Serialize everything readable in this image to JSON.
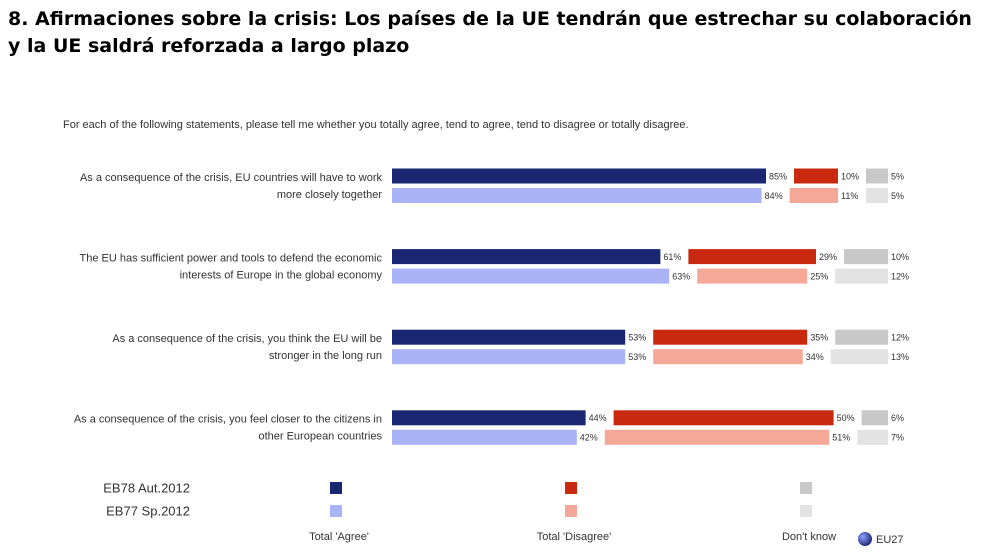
{
  "chart_data": {
    "type": "bar",
    "stacked": true,
    "orientation": "horizontal",
    "title": "8. Afirmaciones sobre la crisis: Los países de la UE tendrán que estrechar su colaboración y la UE saldrá reforzada a largo plazo",
    "subtitle": "For each of the following statements, please tell me whether you totally agree, tend to agree, tend to disagree or totally disagree.",
    "categories": [
      [
        "As a consequence of the crisis, EU countries will have to work",
        "more closely together"
      ],
      [
        "The EU has sufficient power and tools to defend the economic",
        "interests of Europe in the global economy"
      ],
      [
        "As a consequence of the crisis, you think the EU will be",
        "stronger in the long run"
      ],
      [
        "As a consequence of the crisis, you feel closer to the citizens in",
        "other European countries"
      ]
    ],
    "responses": [
      "Total 'Agree'",
      "Total 'Disagree'",
      "Don't know"
    ],
    "series": [
      {
        "name": "EB78 Aut.2012",
        "colors": [
          "#1a2672",
          "#c8290f",
          "#c8c8c8"
        ],
        "values": [
          [
            85,
            10,
            5
          ],
          [
            61,
            29,
            10
          ],
          [
            53,
            35,
            12
          ],
          [
            44,
            50,
            6
          ]
        ],
        "value_labels": [
          [
            "85%",
            "10%",
            "5%"
          ],
          [
            "61%",
            "29%",
            "10%"
          ],
          [
            "53%",
            "35%",
            "12%"
          ],
          [
            "44%",
            "50%",
            "6%"
          ]
        ]
      },
      {
        "name": "EB77 Sp.2012",
        "colors": [
          "#aab3f5",
          "#f5a898",
          "#e3e3e3"
        ],
        "values": [
          [
            84,
            11,
            5
          ],
          [
            63,
            25,
            12
          ],
          [
            53,
            34,
            13
          ],
          [
            42,
            51,
            7
          ]
        ],
        "value_labels": [
          [
            "84%",
            "11%",
            "5%"
          ],
          [
            "63%",
            "25%",
            "12%"
          ],
          [
            "53%",
            "34%",
            "13%"
          ],
          [
            "42%",
            "51%",
            "7%"
          ]
        ]
      }
    ],
    "footnote": "EU27"
  }
}
